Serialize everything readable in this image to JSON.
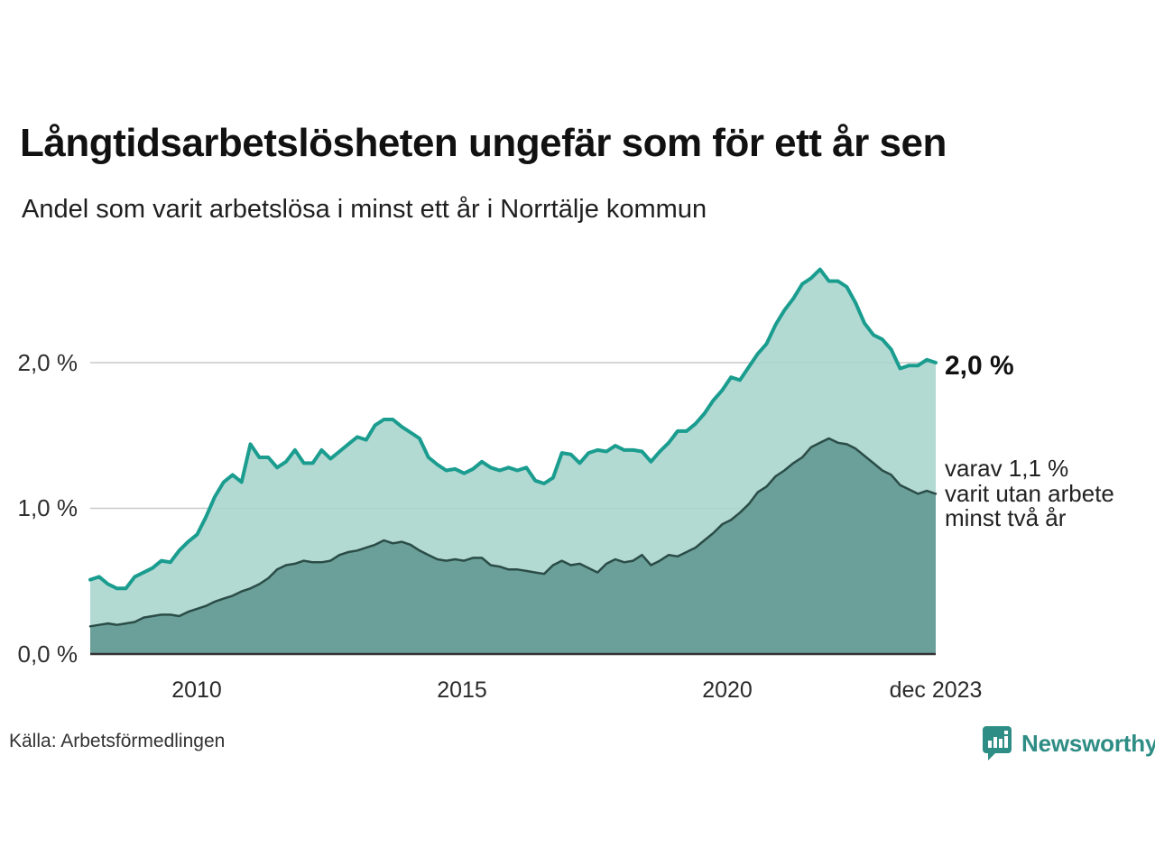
{
  "title": "Långtidsarbetslösheten ungefär som för ett år sen",
  "subtitle": "Andel som varit arbetslösa i minst ett år i Norrtälje kommun",
  "source": "Källa: Arbetsförmedlingen",
  "logo": {
    "text": "Newsworthy",
    "icon": "bar-chart-speech-bubble-icon",
    "color": "#2e8d84"
  },
  "annotations": {
    "end_total": "2,0 %",
    "end_subset_line1": "varav 1,1 %",
    "end_subset_line2": "varit utan arbete",
    "end_subset_line3": "minst två år"
  },
  "colors": {
    "total_line": "#1a9d8f",
    "total_fill": "#a9d4cd",
    "subset_line": "#2b4c47",
    "subset_fill": "#649b94",
    "gridline": "#c9c9c9",
    "axis_line": "#333333",
    "text_dark": "#111111",
    "text_gray": "#333333"
  },
  "chart_data": {
    "type": "area",
    "title": "Långtidsarbetslösheten ungefär som för ett år sen",
    "subtitle": "Andel som varit arbetslösa i minst ett år i Norrtälje kommun",
    "unit": "%",
    "x_range": [
      2008.0,
      2023.917
    ],
    "ylim": [
      0,
      2.8
    ],
    "grid": "horizontal",
    "legend_position": "right-annotations",
    "y_ticks": [
      {
        "value": 0,
        "label": "0,0 %"
      },
      {
        "value": 1,
        "label": "1,0 %"
      },
      {
        "value": 2,
        "label": "2,0 %"
      }
    ],
    "x_ticks": [
      {
        "value": 2010,
        "label": "2010"
      },
      {
        "value": 2015,
        "label": "2015"
      },
      {
        "value": 2020,
        "label": "2020"
      },
      {
        "value": 2023.917,
        "label": "dec 2023"
      }
    ],
    "series": [
      {
        "name": "Andel som varit arbetslösa i minst ett år",
        "end_value": 2.0,
        "end_label": "2,0 %",
        "line_color": "#1a9d8f",
        "line_width": 4,
        "fill_color": "#a9d4cd",
        "fill_opacity": 0.88,
        "values": [
          0.51,
          0.53,
          0.48,
          0.45,
          0.45,
          0.53,
          0.56,
          0.59,
          0.64,
          0.63,
          0.71,
          0.77,
          0.82,
          0.94,
          1.08,
          1.18,
          1.23,
          1.18,
          1.44,
          1.35,
          1.35,
          1.28,
          1.32,
          1.4,
          1.31,
          1.31,
          1.4,
          1.34,
          1.39,
          1.44,
          1.49,
          1.47,
          1.57,
          1.61,
          1.61,
          1.56,
          1.52,
          1.48,
          1.35,
          1.3,
          1.26,
          1.27,
          1.24,
          1.27,
          1.32,
          1.28,
          1.26,
          1.28,
          1.26,
          1.28,
          1.19,
          1.17,
          1.21,
          1.38,
          1.37,
          1.31,
          1.38,
          1.4,
          1.39,
          1.43,
          1.4,
          1.4,
          1.39,
          1.32,
          1.39,
          1.45,
          1.53,
          1.53,
          1.58,
          1.65,
          1.74,
          1.81,
          1.9,
          1.88,
          1.97,
          2.06,
          2.13,
          2.26,
          2.36,
          2.44,
          2.54,
          2.58,
          2.64,
          2.56,
          2.56,
          2.52,
          2.41,
          2.27,
          2.19,
          2.16,
          2.09,
          1.96,
          1.98,
          1.98,
          2.02,
          2.0
        ]
      },
      {
        "name": "varav varit utan arbete minst två år",
        "end_value": 1.1,
        "end_label": "varav 1,1 % varit utan arbete minst två år",
        "line_color": "#2b4c47",
        "line_width": 2.5,
        "fill_color": "#649b94",
        "fill_opacity": 0.92,
        "values": [
          0.19,
          0.2,
          0.21,
          0.2,
          0.21,
          0.22,
          0.25,
          0.26,
          0.27,
          0.27,
          0.26,
          0.29,
          0.31,
          0.33,
          0.36,
          0.38,
          0.4,
          0.43,
          0.45,
          0.48,
          0.52,
          0.58,
          0.61,
          0.62,
          0.64,
          0.63,
          0.63,
          0.64,
          0.68,
          0.7,
          0.71,
          0.73,
          0.75,
          0.78,
          0.76,
          0.77,
          0.75,
          0.71,
          0.68,
          0.65,
          0.64,
          0.65,
          0.64,
          0.66,
          0.66,
          0.61,
          0.6,
          0.58,
          0.58,
          0.57,
          0.56,
          0.55,
          0.61,
          0.64,
          0.61,
          0.62,
          0.59,
          0.56,
          0.62,
          0.65,
          0.63,
          0.64,
          0.68,
          0.61,
          0.64,
          0.68,
          0.67,
          0.7,
          0.73,
          0.78,
          0.83,
          0.89,
          0.92,
          0.97,
          1.03,
          1.11,
          1.15,
          1.22,
          1.26,
          1.31,
          1.35,
          1.42,
          1.45,
          1.48,
          1.45,
          1.44,
          1.41,
          1.36,
          1.31,
          1.26,
          1.23,
          1.16,
          1.13,
          1.1,
          1.12,
          1.1
        ]
      }
    ]
  }
}
